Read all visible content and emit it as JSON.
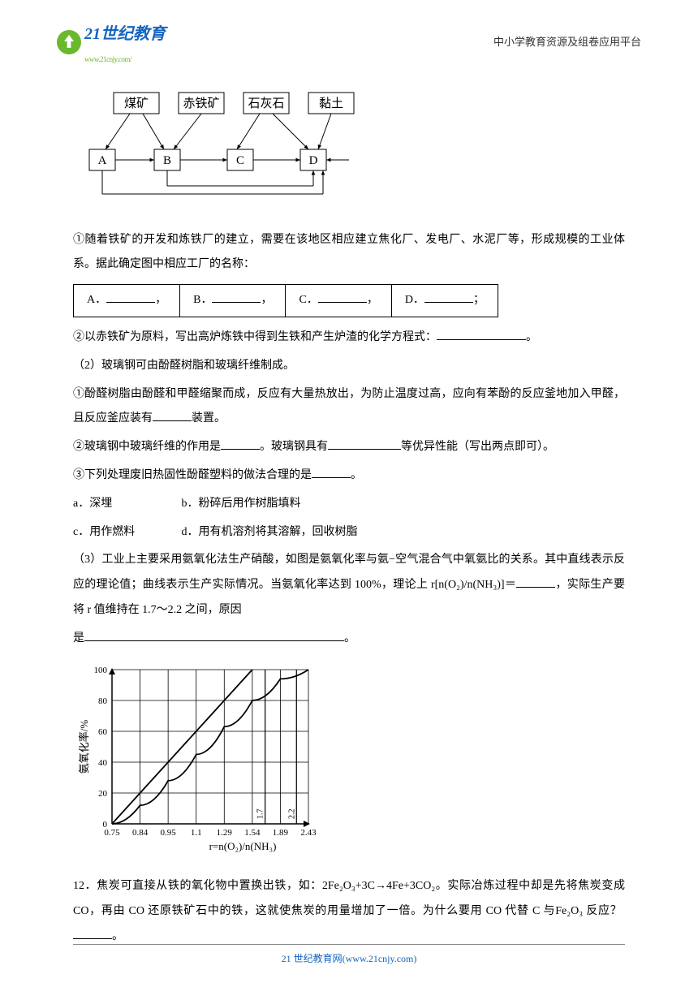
{
  "header": {
    "logo_text": "21世纪教育",
    "logo_url": "www.21cnjy.com/",
    "right_text": "中小学教育资源及组卷应用平台"
  },
  "flowchart": {
    "top_nodes": [
      "煤矿",
      "赤铁矿",
      "石灰石",
      "黏土"
    ],
    "bottom_nodes": [
      "A",
      "B",
      "C",
      "D"
    ],
    "box_border_color": "#000000",
    "line_color": "#000000",
    "font_size": 15
  },
  "q1_intro": "①随着铁矿的开发和炼铁厂的建立，需要在该地区相应建立焦化厂、发电厂、水泥厂等，形成规模的工业体系。据此确定图中相应工厂的名称：",
  "answer_table": {
    "cells": [
      "A．",
      "B．",
      "C．",
      "D．"
    ],
    "end_marks": [
      "，",
      "，",
      "，",
      "；"
    ]
  },
  "q2_line": "②以赤铁矿为原料，写出高炉炼铁中得到生铁和产生炉渣的化学方程式：",
  "q2_end": "。",
  "q3_line": "（2）玻璃钢可由酚醛树脂和玻璃纤维制成。",
  "q4_line": "①酚醛树脂由酚醛和甲醛缩聚而成，反应有大量热放出，为防止温度过高，应向有苯酚的反应釜地加入甲醛，且反应釜应装有",
  "q4_after": "装置。",
  "q5_line": "②玻璃钢中玻璃纤维的作用是",
  "q5_mid": "。玻璃钢具有",
  "q5_after": "等优异性能（写出两点即可）。",
  "q6_line": "③下列处理废旧热固性酚醛塑料的做法合理的是",
  "q6_after": "。",
  "opts_line1_a": "a．深埋",
  "opts_line1_b": "b．粉碎后用作树脂填料",
  "opts_line2_c": "c．用作燃料",
  "opts_line2_d": "d．用有机溶剂将其溶解，回收树脂",
  "q7_line": "（3）工业上主要采用氨氧化法生产硝酸，如图是氨氧化率与氨−空气混合气中氧氨比的关系。其中直线表示反应的理论值；曲线表示生产实际情况。当氨氧化率达到 100%，理论上 r[n(O₂)/n(NH₃)]＝",
  "q7_mid": "，实际生产要将 r 值维持在 1.7～2.2 之间，原因",
  "q7_line2": "是",
  "q7_after": "。",
  "chart": {
    "type": "line",
    "ylabel": "氨氧化率/%",
    "xlabel": "r=n(O₂)/n(NH₃)",
    "ylim": [
      0,
      100
    ],
    "ytick_step": 20,
    "yticks": [
      0,
      20,
      40,
      60,
      80,
      100
    ],
    "xticks": [
      0.75,
      0.84,
      0.95,
      1.1,
      1.29,
      1.54,
      1.89,
      2.43
    ],
    "ref_vlines": [
      "1.7",
      "2.2"
    ],
    "line_series": {
      "name": "理论值",
      "points": [
        [
          0.75,
          0
        ],
        [
          0.84,
          20
        ],
        [
          0.95,
          40
        ],
        [
          1.1,
          60
        ],
        [
          1.29,
          80
        ],
        [
          1.54,
          100
        ]
      ]
    },
    "curve_series": {
      "name": "实际",
      "points": [
        [
          0.75,
          0
        ],
        [
          0.84,
          12
        ],
        [
          0.95,
          28
        ],
        [
          1.1,
          45
        ],
        [
          1.29,
          63
        ],
        [
          1.54,
          80
        ],
        [
          1.89,
          94
        ],
        [
          2.43,
          100
        ]
      ]
    },
    "axis_color": "#000000",
    "grid_color": "#000000",
    "line_color": "#000000",
    "curve_color": "#000000",
    "background_color": "#ffffff",
    "label_fontsize": 13,
    "tick_fontsize": 11
  },
  "q12_line": "12．焦炭可直接从铁的氧化物中置换出铁，如：2Fe₂O₃+3C→4Fe+3CO₂。实际冶炼过程中却是先将焦炭变成 CO，再由 CO 还原铁矿石中的铁，这就使焦炭的用量增加了一倍。为什么要用 CO 代替 C 与Fe₂O₃ 反应？",
  "q12_after": "。",
  "footer": "21 世纪教育网(www.21cnjy.com)"
}
